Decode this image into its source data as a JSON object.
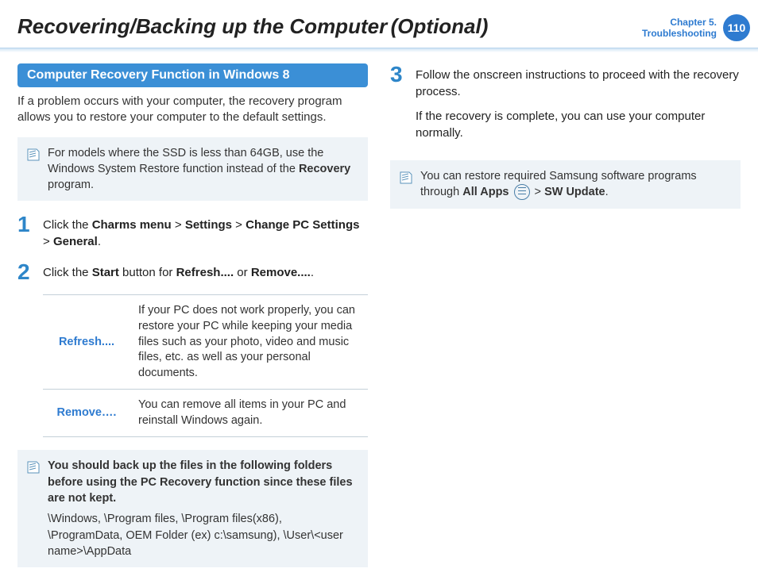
{
  "header": {
    "title": "Recovering/Backing up the Computer",
    "optional": "(Optional)",
    "chapter_line1": "Chapter 5.",
    "chapter_line2": "Troubleshooting",
    "page_number": "110"
  },
  "colors": {
    "accent": "#2e7bd0",
    "section_bg": "#3b8fd6",
    "note_bg": "#eef3f7",
    "step_number": "#2e86c9",
    "border": "#c4d0d8"
  },
  "section": {
    "heading": "Computer Recovery Function in Windows 8",
    "intro": "If a problem occurs with your computer, the recovery program allows you to restore your computer to the default settings."
  },
  "note1": {
    "prefix": "For models where the SSD is less than 64GB, use the Windows System Restore function instead of the ",
    "bold": "Recovery",
    "suffix": " program."
  },
  "steps": [
    {
      "num": "1",
      "html": "Click the <b>Charms menu</b> > <b>Settings</b> > <b>Change PC Settings</b> > <b>General</b>."
    },
    {
      "num": "2",
      "html": "Click the <b>Start</b> button for <b>Refresh....</b> or <b>Remove....</b>."
    },
    {
      "num": "3",
      "html": "Follow the onscreen instructions to proceed with the recovery process.",
      "p2": "If the recovery is complete, you can use your computer normally."
    }
  ],
  "option_table": {
    "rows": [
      {
        "label": "Refresh....",
        "desc": "If your PC does not work properly, you can restore your PC while keeping your media files such as your photo, video and music files, etc. as well as your personal documents."
      },
      {
        "label": "Remove….",
        "desc": "You can remove all items in your PC and reinstall Windows again."
      }
    ]
  },
  "note2": {
    "bold_block": "You should back up the files in the following folders before using the PC Recovery function since these files are not kept.",
    "paths": "\\Windows, \\Program files, \\Program files(x86), \\ProgramData, OEM Folder (ex) c:\\samsung), \\User\\<user name>\\AppData"
  },
  "note3": {
    "prefix": "You can restore required Samsung software programs through ",
    "bold1": "All Apps",
    "sep": " > ",
    "bold2": "SW Update",
    "suffix": "."
  }
}
